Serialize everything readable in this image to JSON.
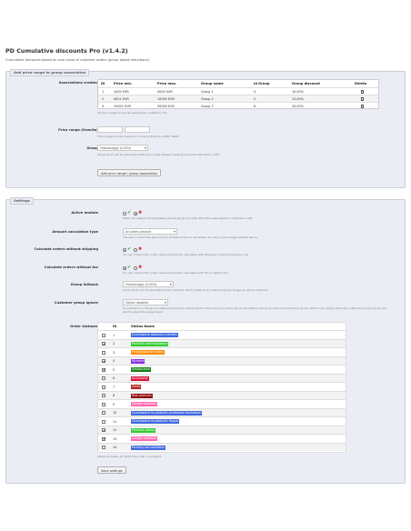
{
  "header": {
    "title": "PD Cumulative discounts Pro (v1.4.2)",
    "subtitle": "Cumulative discounts based on sum value of customer orders (group based reductions)."
  },
  "ranges_panel": {
    "legend": "Add price range to group association",
    "associations_label": "Associations created",
    "columns": [
      "ID",
      "Price min.",
      "Price max.",
      "Group name",
      "Id Group",
      "Group discount",
      "Delete"
    ],
    "rows": [
      {
        "id": "1",
        "min": "1000 EUR",
        "max": "4000 EUR",
        "group": "Group 1",
        "id_group": "4",
        "discount": "10,00%"
      },
      {
        "id": "2",
        "min": "4001 EUR",
        "max": "10000 EUR",
        "group": "Group 2",
        "id_group": "5",
        "discount": "15,00%"
      },
      {
        "id": "3",
        "min": "10001 EUR",
        "max": "50000 EUR",
        "group": "Group 3",
        "id_group": "6",
        "discount": "20,00%"
      }
    ],
    "associations_hint": "All price ranges to groups association created by You",
    "price_range_label": "Price range (from/to)",
    "price_from": "",
    "price_to": "",
    "price_range_hint": "Price range from/to inserted in currency EUR (ex. 1000, 2000)",
    "group_label": "Group",
    "group_value": "Odsiedzajgry (0,00%)",
    "group_hint": "Group which will be associated with price range (Please create groups with reductions in BO)",
    "add_button": "Add price range / group association"
  },
  "settings_panel": {
    "legend": "Settings",
    "active_module": {
      "label": "Active module",
      "value": "no",
      "hint": "When You disable module please remove all groups with reductions associated to customers in BO"
    },
    "amount_type": {
      "label": "Amount calculation type",
      "value": "All orders amount",
      "hint": "The way in which the amount sum of totals orders is calculated, for use in price ranges defined above."
    },
    "without_shipping": {
      "label": "Calculate orders without shipping",
      "value": "yes",
      "hint": "You can chose if the orders amount should be calculated with shipping or without shipping cost."
    },
    "without_tax": {
      "label": "Calculate orders without tax",
      "value": "yes",
      "hint": "You can chose if the orders amount should be calculated with tax or without tax."
    },
    "fallback": {
      "label": "Group fallback",
      "value": "Odsiedzajgry (0,00%)",
      "hint": "Group which will be associated when customer don't qualify to any discount group ranges ex. group Customer"
    },
    "ignore": {
      "label": "Customer group ignore",
      "value": "Option disabled",
      "hint": "If customer is in this group (default group) then assignment to discount group when we do calculations will be ignored (some times it can be useful if you assign particular customer to some group and want to keep this assignment)"
    },
    "order_statuses_label": "Order statuses",
    "order_statuses_columns": [
      "ID",
      "Status Name"
    ],
    "statuses": [
      {
        "id": "1",
        "name": "Oczekiwanie płatności czekiem",
        "checked": false,
        "color": "#4169e1"
      },
      {
        "id": "2",
        "name": "Płatność zaakceptowana",
        "checked": true,
        "color": "#32cd32"
      },
      {
        "id": "3",
        "name": "Przygotowanie w toku",
        "checked": false,
        "color": "#ff8c00"
      },
      {
        "id": "4",
        "name": "Wysłane",
        "checked": true,
        "color": "#8a2be2"
      },
      {
        "id": "5",
        "name": "Dostarczone",
        "checked": true,
        "color": "#108510"
      },
      {
        "id": "6",
        "name": "Anulowane",
        "checked": false,
        "color": "#dc143c"
      },
      {
        "id": "7",
        "name": "Zwrot",
        "checked": false,
        "color": "#b22222"
      },
      {
        "id": "8",
        "name": "Błąd płatności",
        "checked": false,
        "color": "#8b0000"
      },
      {
        "id": "9",
        "name": "Zaległe płatności",
        "checked": false,
        "color": "#ff69b4"
      },
      {
        "id": "10",
        "name": "Oczekiwanie na płatność przelewem bankowym",
        "checked": false,
        "color": "#4169e1"
      },
      {
        "id": "11",
        "name": "Oczekiwanie na płatność Paypal",
        "checked": false,
        "color": "#4169e1"
      },
      {
        "id": "12",
        "name": "Płatność zdalna",
        "checked": true,
        "color": "#32cd32"
      },
      {
        "id": "13",
        "name": "Zaległe płatności",
        "checked": true,
        "color": "#ff69b4"
      },
      {
        "id": "14",
        "name": "Pending cod validation",
        "checked": false,
        "color": "#4169e1"
      }
    ],
    "statuses_hint": "Status of orders, for which the order is accepted.",
    "save_button": "Save settings"
  }
}
